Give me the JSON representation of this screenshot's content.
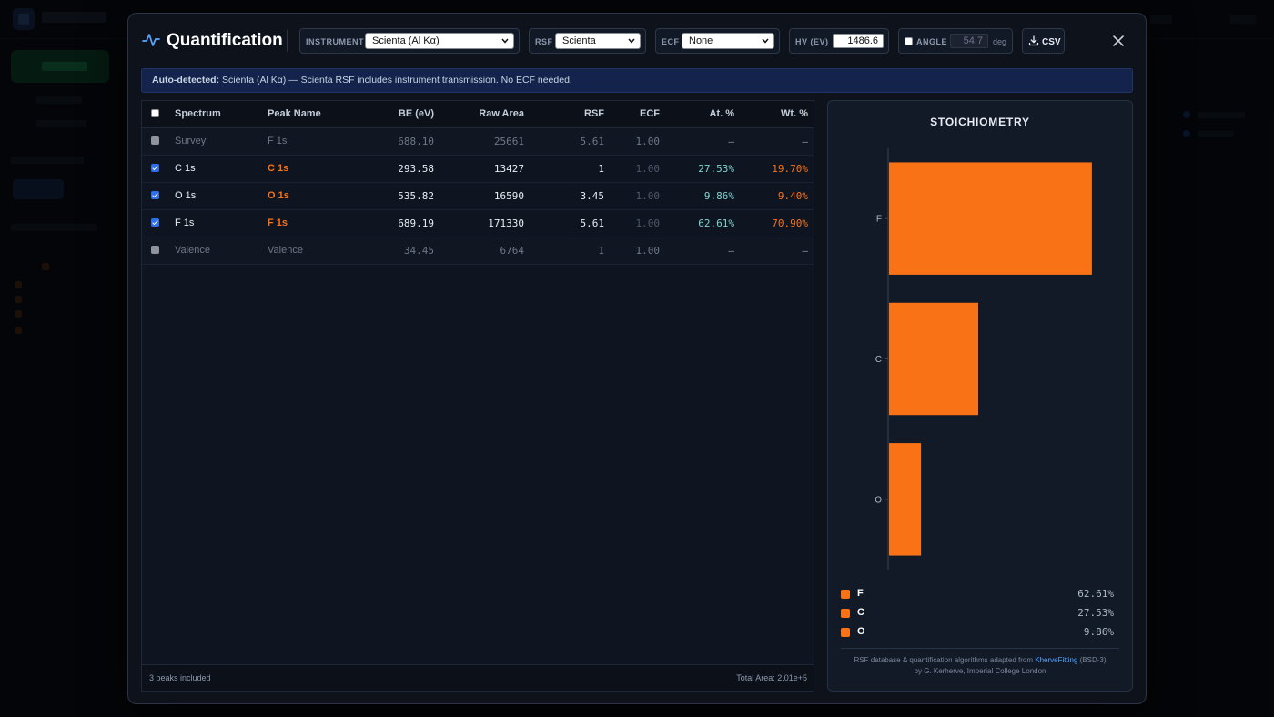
{
  "modal": {
    "title": "Quantification",
    "instrument": {
      "label": "INSTRUMENT",
      "value": "Scienta (Al Kα)"
    },
    "rsf": {
      "label": "RSF",
      "value": "Scienta"
    },
    "ecf": {
      "label": "ECF",
      "value": "None"
    },
    "hv": {
      "label": "HV (EV)",
      "value": "1486.6"
    },
    "angle": {
      "label": "ANGLE",
      "value": "54.7",
      "unit": "deg",
      "checked": false
    },
    "csv_label": "CSV"
  },
  "banner": {
    "prefix": "Auto-detected:",
    "text": "Scienta (Al Kα) — Scienta RSF includes instrument transmission. No ECF needed."
  },
  "table": {
    "headers": {
      "spectrum": "Spectrum",
      "peak": "Peak Name",
      "be": "BE (eV)",
      "area": "Raw Area",
      "rsf": "RSF",
      "ecf": "ECF",
      "at": "At. %",
      "wt": "Wt. %"
    },
    "rows": [
      {
        "checked": false,
        "spectrum": "Survey",
        "peak": "F 1s",
        "be": "688.10",
        "area": "25661",
        "rsf": "5.61",
        "ecf": "1.00",
        "at": "–",
        "wt": "–"
      },
      {
        "checked": true,
        "spectrum": "C 1s",
        "peak": "C 1s",
        "be": "293.58",
        "area": "13427",
        "rsf": "1",
        "ecf": "1.00",
        "at": "27.53%",
        "wt": "19.70%"
      },
      {
        "checked": true,
        "spectrum": "O 1s",
        "peak": "O 1s",
        "be": "535.82",
        "area": "16590",
        "rsf": "3.45",
        "ecf": "1.00",
        "at": "9.86%",
        "wt": "9.40%"
      },
      {
        "checked": true,
        "spectrum": "F 1s",
        "peak": "F 1s",
        "be": "689.19",
        "area": "171330",
        "rsf": "5.61",
        "ecf": "1.00",
        "at": "62.61%",
        "wt": "70.90%"
      },
      {
        "checked": false,
        "spectrum": "Valence",
        "peak": "Valence",
        "be": "34.45",
        "area": "6764",
        "rsf": "1",
        "ecf": "1.00",
        "at": "–",
        "wt": "–"
      }
    ],
    "footer_left": "3 peaks included",
    "footer_right": "Total Area: 2.01e+5"
  },
  "stoichiometry": {
    "title": "STOICHIOMETRY",
    "legend": [
      {
        "name": "F",
        "value": "62.61%"
      },
      {
        "name": "C",
        "value": "27.53%"
      },
      {
        "name": "O",
        "value": "9.86%"
      }
    ],
    "attribution": {
      "pre": "RSF database & quantification algorithms adapted from",
      "link": "KherveFitting",
      "post": "(BSD-3)",
      "line2": "by G. Kerherve, Imperial College London"
    }
  },
  "colors": {
    "accent": "#f97316",
    "at_pct": "#7fd3d1",
    "banner_bg": "#13234b",
    "link": "#5aa6ff"
  },
  "chart_data": {
    "type": "bar",
    "orientation": "horizontal",
    "categories": [
      "F",
      "C",
      "O"
    ],
    "values": [
      62.61,
      27.53,
      9.86
    ],
    "xlim": [
      0,
      100
    ],
    "color": "#f97316",
    "title": "STOICHIOMETRY",
    "grid": false
  }
}
